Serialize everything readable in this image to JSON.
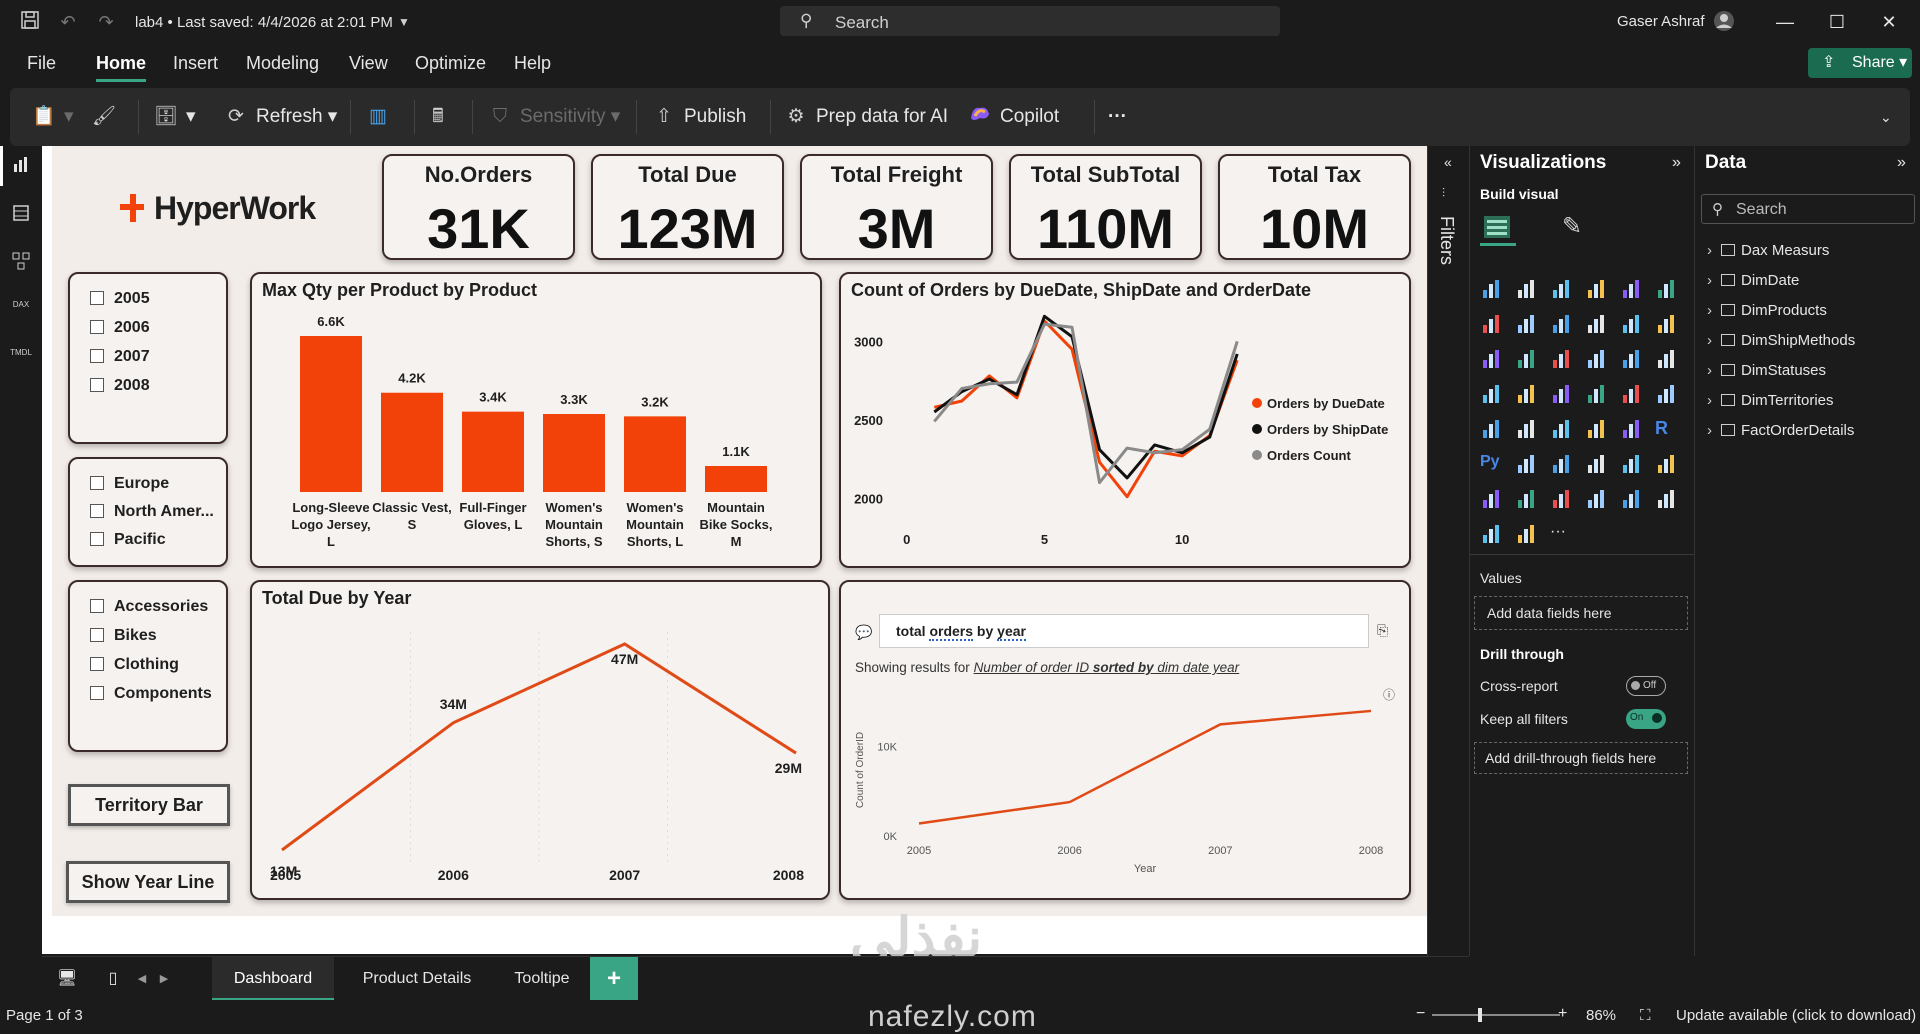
{
  "titlebar": {
    "doc_title": "lab4 • Last saved: 4/4/2026 at 2:01 PM",
    "search_placeholder": "Search",
    "user_name": "Gaser Ashraf"
  },
  "menu": {
    "items": [
      "File",
      "Home",
      "Insert",
      "Modeling",
      "View",
      "Optimize",
      "Help"
    ],
    "active": "Home",
    "share_label": "Share"
  },
  "ribbon": {
    "refresh": "Refresh",
    "sensitivity": "Sensitivity",
    "publish": "Publish",
    "prep_ai": "Prep data for AI",
    "copilot": "Copilot",
    "more": "···"
  },
  "rail": {
    "dax": "DAX",
    "tmdl": "TMDL"
  },
  "report": {
    "logo": "HyperWork",
    "kpis": [
      {
        "title": "No.Orders",
        "value": "31K"
      },
      {
        "title": "Total Due",
        "value": "123M"
      },
      {
        "title": "Total Freight",
        "value": "3M"
      },
      {
        "title": "Total SubTotal",
        "value": "110M"
      },
      {
        "title": "Total Tax",
        "value": "10M"
      }
    ],
    "slicer_years": [
      "2005",
      "2006",
      "2007",
      "2008"
    ],
    "slicer_regions": [
      "Europe",
      "North Amer...",
      "Pacific"
    ],
    "slicer_categories": [
      "Accessories",
      "Bikes",
      "Clothing",
      "Components"
    ],
    "btn_territory": "Territory Bar",
    "btn_year_line": "Show Year Line",
    "qa": {
      "query_prefix": "total ",
      "query_orders": "orders",
      "query_mid": " by ",
      "query_year": "year",
      "result_prefix": "Showing results for ",
      "result_a": "Number of order ID ",
      "result_b": "sorted by",
      "result_c": " dim date year"
    }
  },
  "chart_data": [
    {
      "type": "bar",
      "title": "Max Qty per Product by Product",
      "categories": [
        "Long-Sleeve Logo Jersey, L",
        "Classic Vest, S",
        "Full-Finger Gloves, L",
        "Women's Mountain Shorts, S",
        "Women's Mountain Shorts, L",
        "Mountain Bike Socks, M"
      ],
      "category_lines": [
        [
          "Long-Sleeve",
          "Logo Jersey,",
          "L"
        ],
        [
          "Classic Vest,",
          "S"
        ],
        [
          "Full-Finger",
          "Gloves, L"
        ],
        [
          "Women's",
          "Mountain",
          "Shorts, S"
        ],
        [
          "Women's",
          "Mountain",
          "Shorts, L"
        ],
        [
          "Mountain",
          "Bike Socks,",
          "M"
        ]
      ],
      "values": [
        6600,
        4200,
        3400,
        3300,
        3200,
        1100
      ],
      "data_labels": [
        "6.6K",
        "4.2K",
        "3.4K",
        "3.3K",
        "3.2K",
        "1.1K"
      ],
      "color": "#f2420a",
      "ylim": [
        0,
        6600
      ]
    },
    {
      "type": "line",
      "title": "Count of Orders by DueDate, ShipDate and OrderDate",
      "x": [
        1,
        2,
        3,
        4,
        5,
        6,
        7,
        8,
        9,
        10,
        11,
        12
      ],
      "series": [
        {
          "name": "Orders by DueDate",
          "color": "#f2420a",
          "values": [
            2580,
            2620,
            2780,
            2640,
            3130,
            2950,
            2230,
            2010,
            2300,
            2270,
            2400,
            2880
          ]
        },
        {
          "name": "Orders by ShipDate",
          "color": "#111111",
          "values": [
            2550,
            2680,
            2760,
            2660,
            3160,
            3030,
            2310,
            2130,
            2340,
            2290,
            2390,
            2920
          ]
        },
        {
          "name": "Orders Count",
          "color": "#8a8a8a",
          "values": [
            2490,
            2700,
            2730,
            2740,
            3110,
            3090,
            2100,
            2320,
            2290,
            2310,
            2440,
            3000
          ]
        }
      ],
      "xticks": [
        0,
        5,
        10
      ],
      "yticks": [
        2000,
        2500,
        3000
      ],
      "xlim": [
        -0.5,
        12.5
      ],
      "ylim": [
        1900,
        3200
      ],
      "legend": "right"
    },
    {
      "type": "line",
      "title": "Total Due by Year",
      "categories": [
        "2005",
        "2006",
        "2007",
        "2008"
      ],
      "values": [
        13,
        34,
        47,
        29
      ],
      "data_labels": [
        "13M",
        "34M",
        "47M",
        "29M"
      ],
      "color": "#e04a17",
      "ylim": [
        13,
        47
      ]
    },
    {
      "type": "line",
      "title": "",
      "categories": [
        "2005",
        "2006",
        "2007",
        "2008"
      ],
      "values": [
        1400,
        3800,
        12500,
        14000
      ],
      "color": "#e04a17",
      "xlabel": "Year",
      "ylabel": "Count of OrderID",
      "yticks": [
        "0K",
        "10K"
      ],
      "ylim": [
        0,
        15000
      ]
    }
  ],
  "filters": {
    "label": "Filters"
  },
  "visualizations": {
    "title": "Visualizations",
    "build_visual": "Build visual",
    "values_label": "Values",
    "add_data_fields": "Add data fields here",
    "drill_through": "Drill through",
    "cross_report": "Cross-report",
    "cross_report_state": "Off",
    "keep_all_filters": "Keep all filters",
    "keep_all_filters_state": "On",
    "add_drill_fields": "Add drill-through fields here",
    "r_label": "R",
    "py_label": "Py",
    "more": "···"
  },
  "data_pane": {
    "title": "Data",
    "search_placeholder": "Search",
    "tables": [
      "Dax Measurs",
      "DimDate",
      "DimProducts",
      "DimShipMethods",
      "DimStatuses",
      "DimTerritories",
      "FactOrderDetails"
    ]
  },
  "tabs": {
    "items": [
      "Dashboard",
      "Product Details",
      "Tooltipe"
    ],
    "active": "Dashboard",
    "add": "+"
  },
  "status": {
    "page": "Page 1 of 3",
    "zoom": "86%",
    "update": "Update available (click to download)"
  },
  "watermark": {
    "arabic": "نفذلي",
    "latin": "nafezly.com"
  }
}
